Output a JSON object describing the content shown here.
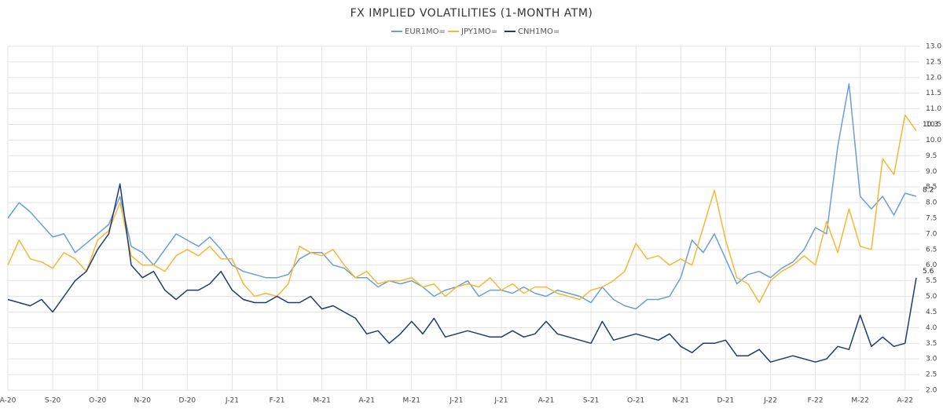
{
  "chart_data": {
    "type": "line",
    "title": "FX IMPLIED VOLATILITIES (1-MONTH ATM)",
    "categories": [
      "A-20",
      null,
      null,
      null,
      "S-20",
      null,
      null,
      null,
      "O-20",
      null,
      null,
      null,
      "N-20",
      null,
      null,
      null,
      "D-20",
      null,
      null,
      null,
      "J-21",
      null,
      null,
      null,
      "F-21",
      null,
      null,
      null,
      "M-21",
      null,
      null,
      null,
      "A-21",
      null,
      null,
      null,
      "M-21",
      null,
      null,
      null,
      "J-21",
      null,
      null,
      null,
      "J-21",
      null,
      null,
      null,
      "A-21",
      null,
      null,
      null,
      "S-21",
      null,
      null,
      null,
      "O-21",
      null,
      null,
      null,
      "N-21",
      null,
      null,
      null,
      "D-21",
      null,
      null,
      null,
      "J-22",
      null,
      null,
      null,
      "F-22",
      null,
      null,
      null,
      "M-22",
      null,
      null,
      null,
      "A-22",
      null
    ],
    "series": [
      {
        "name": "EUR1MO=",
        "color": "#6a9fd4",
        "end_label": "8.2",
        "values": [
          7.5,
          8.0,
          7.7,
          7.3,
          6.9,
          7.0,
          6.4,
          6.7,
          7.0,
          7.3,
          8.2,
          6.6,
          6.4,
          6.0,
          6.5,
          7.0,
          6.8,
          6.6,
          6.9,
          6.5,
          6.0,
          5.8,
          5.7,
          5.6,
          5.6,
          5.7,
          6.2,
          6.4,
          6.4,
          6.0,
          5.9,
          5.6,
          5.6,
          5.3,
          5.5,
          5.4,
          5.5,
          5.3,
          5.0,
          5.2,
          5.3,
          5.5,
          5.0,
          5.2,
          5.2,
          5.1,
          5.3,
          5.1,
          5.0,
          5.2,
          5.1,
          5.0,
          4.8,
          5.3,
          4.9,
          4.7,
          4.6,
          4.9,
          4.9,
          5.0,
          5.6,
          6.8,
          6.4,
          7.0,
          6.2,
          5.4,
          5.7,
          5.8,
          5.6,
          5.9,
          6.1,
          6.5,
          7.2,
          7.0,
          9.8,
          11.8,
          8.2,
          7.8,
          8.2,
          7.6,
          8.3,
          8.2
        ]
      },
      {
        "name": "JPY1MO=",
        "color": "#f5b833",
        "end_label": "10.3",
        "values": [
          6.0,
          6.8,
          6.2,
          6.1,
          5.9,
          6.4,
          6.2,
          5.8,
          6.8,
          7.1,
          8.0,
          6.3,
          6.0,
          6.0,
          5.8,
          6.3,
          6.5,
          6.3,
          6.6,
          6.2,
          6.2,
          5.4,
          5.0,
          5.1,
          5.0,
          5.4,
          6.6,
          6.4,
          6.3,
          6.5,
          6.0,
          5.6,
          5.8,
          5.4,
          5.5,
          5.5,
          5.6,
          5.3,
          5.4,
          5.0,
          5.3,
          5.4,
          5.3,
          5.6,
          5.2,
          5.4,
          5.1,
          5.3,
          5.3,
          5.1,
          5.0,
          4.9,
          5.2,
          5.3,
          5.5,
          5.8,
          6.7,
          6.2,
          6.3,
          6.0,
          6.2,
          6.0,
          7.2,
          8.4,
          6.8,
          5.6,
          5.4,
          4.8,
          5.5,
          5.8,
          6.0,
          6.3,
          6.0,
          7.4,
          6.4,
          7.8,
          6.6,
          6.5,
          9.4,
          8.9,
          10.8,
          10.3
        ]
      },
      {
        "name": "CNH1MO=",
        "color": "#1f3b6e",
        "end_label": "5.6",
        "values": [
          4.9,
          4.8,
          4.7,
          4.9,
          4.5,
          5.0,
          5.5,
          5.8,
          6.5,
          7.0,
          8.6,
          6.0,
          5.6,
          5.8,
          5.2,
          4.9,
          5.2,
          5.2,
          5.4,
          5.8,
          5.2,
          4.9,
          4.8,
          4.8,
          5.0,
          4.8,
          4.8,
          5.0,
          4.6,
          4.7,
          4.5,
          4.3,
          3.8,
          3.9,
          3.5,
          3.8,
          4.2,
          3.8,
          4.3,
          3.7,
          3.8,
          3.9,
          3.8,
          3.7,
          3.7,
          3.9,
          3.7,
          3.8,
          4.2,
          3.8,
          3.7,
          3.6,
          3.5,
          4.2,
          3.6,
          3.7,
          3.8,
          3.7,
          3.6,
          3.8,
          3.4,
          3.2,
          3.5,
          3.5,
          3.6,
          3.1,
          3.1,
          3.3,
          2.9,
          3.0,
          3.1,
          3.0,
          2.9,
          3.0,
          3.4,
          3.3,
          4.4,
          3.4,
          3.7,
          3.4,
          3.5,
          5.6
        ]
      }
    ],
    "ylim": [
      2,
      13
    ],
    "yticks": [
      {
        "value": 2,
        "label": "2.0"
      },
      {
        "value": 2.5,
        "label": "2.5"
      },
      {
        "value": 3,
        "label": "3.0"
      },
      {
        "value": 3.5,
        "label": "3.5"
      },
      {
        "value": 4,
        "label": "4.0"
      },
      {
        "value": 4.5,
        "label": "4.5"
      },
      {
        "value": 5,
        "label": "5.0"
      },
      {
        "value": 5.5,
        "label": "5.5"
      },
      {
        "value": 6,
        "label": "6.0"
      },
      {
        "value": 6.5,
        "label": "6.5"
      },
      {
        "value": 7,
        "label": "7.0"
      },
      {
        "value": 7.5,
        "label": "7.5"
      },
      {
        "value": 8,
        "label": "8.0"
      },
      {
        "value": 8.5,
        "label": "8.5"
      },
      {
        "value": 9,
        "label": "9.0"
      },
      {
        "value": 9.5,
        "label": "9.5"
      },
      {
        "value": 10,
        "label": "10.0"
      },
      {
        "value": 10.5,
        "label": "10.5"
      },
      {
        "value": 11,
        "label": "11.0"
      },
      {
        "value": 11.5,
        "label": "11.5"
      },
      {
        "value": 12,
        "label": "12.0"
      },
      {
        "value": 12.5,
        "label": "12.5"
      },
      {
        "value": 13,
        "label": "13.0"
      }
    ],
    "grid": true,
    "legend": "top"
  }
}
